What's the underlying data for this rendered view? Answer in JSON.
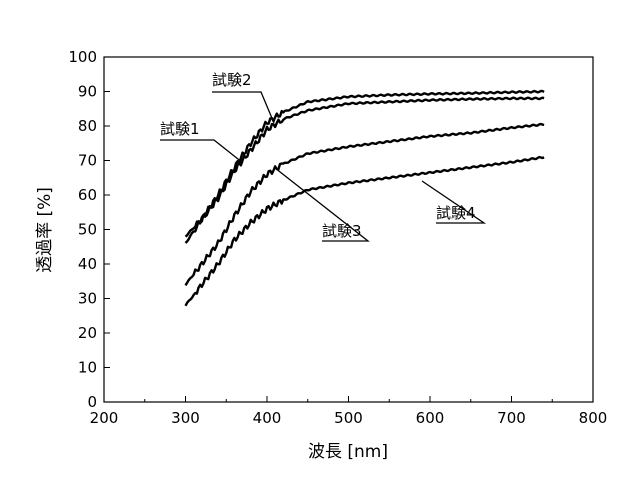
{
  "chart_data": {
    "type": "line",
    "xlabel": "波長 [nm]",
    "ylabel": "透過率 [%]",
    "xlim": [
      200,
      800
    ],
    "ylim": [
      0,
      100
    ],
    "xticks": [
      "200",
      "300",
      "400",
      "500",
      "600",
      "700",
      "800"
    ],
    "yticks": [
      "0",
      "10",
      "20",
      "30",
      "40",
      "50",
      "60",
      "70",
      "80",
      "90",
      "100"
    ],
    "grid": false,
    "series": [
      {
        "name": "試験1",
        "x": [
          300,
          320,
          340,
          360,
          380,
          400,
          420,
          450,
          500,
          550,
          600,
          650,
          700,
          740
        ],
        "y": [
          46,
          53,
          59,
          67,
          73,
          79,
          82,
          84.5,
          86.5,
          87,
          87.5,
          87.8,
          88,
          88
        ]
      },
      {
        "name": "試験2",
        "x": [
          300,
          320,
          340,
          360,
          380,
          400,
          420,
          450,
          500,
          550,
          600,
          650,
          700,
          740
        ],
        "y": [
          48,
          53,
          60,
          68,
          75,
          81,
          84,
          87,
          88.5,
          89,
          89.3,
          89.5,
          89.8,
          90
        ]
      },
      {
        "name": "試験3",
        "x": [
          300,
          320,
          340,
          360,
          380,
          400,
          420,
          450,
          500,
          550,
          600,
          650,
          700,
          740
        ],
        "y": [
          34,
          40,
          46,
          54,
          61,
          66,
          69,
          72,
          74,
          75.5,
          77,
          78,
          79.5,
          80.5
        ]
      },
      {
        "name": "試験4",
        "x": [
          300,
          320,
          340,
          360,
          380,
          400,
          420,
          450,
          500,
          550,
          600,
          650,
          700,
          740
        ],
        "y": [
          28,
          34,
          40,
          47,
          52,
          56,
          58.5,
          61.5,
          63.5,
          65,
          66.5,
          68,
          69.5,
          71
        ]
      }
    ]
  }
}
